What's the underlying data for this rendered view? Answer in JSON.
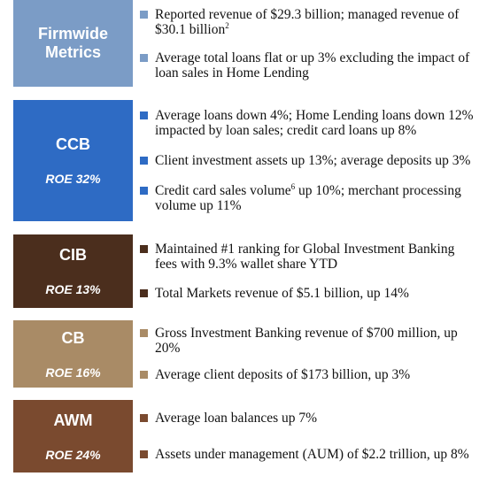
{
  "sections": [
    {
      "label": "Firmwide Metrics",
      "color": "#7b9cc6",
      "bullets": [
        {
          "text": "Reported revenue of $29.3 billion; managed revenue of $30.1 billion",
          "sup": "2"
        },
        {
          "text": "Average total loans flat or up 3% excluding the impact of loan sales in Home Lending"
        }
      ]
    },
    {
      "label": "CCB",
      "roe": "ROE 32%",
      "color": "#2e6bc4",
      "bullets": [
        {
          "text": "Average loans down 4%; Home Lending loans down 12% impacted by loan sales; credit card loans up 8%"
        },
        {
          "text": "Client investment assets up 13%; average deposits up 3%"
        },
        {
          "text": "Credit card sales volume",
          "sup": "6",
          "rest": " up 10%; merchant processing volume up 11%"
        }
      ]
    },
    {
      "label": "CIB",
      "roe": "ROE 13%",
      "color": "#4b2e1d",
      "bullets": [
        {
          "text": "Maintained #1 ranking for Global Investment Banking fees with 9.3% wallet share YTD"
        },
        {
          "text": "Total Markets revenue of $5.1 billion, up 14%"
        }
      ]
    },
    {
      "label": "CB",
      "roe": "ROE 16%",
      "color": "#a98b66",
      "bullets": [
        {
          "text": "Gross Investment Banking revenue of $700 million, up 20%"
        },
        {
          "text": "Average client deposits of $173 billion, up 3%"
        }
      ]
    },
    {
      "label": "AWM",
      "roe": "ROE 24%",
      "color": "#7a4a2f",
      "bullets": [
        {
          "text": "Average loan balances up 7%"
        },
        {
          "text": "Assets under management (AUM) of $2.2 trillion, up 8%"
        }
      ]
    }
  ]
}
